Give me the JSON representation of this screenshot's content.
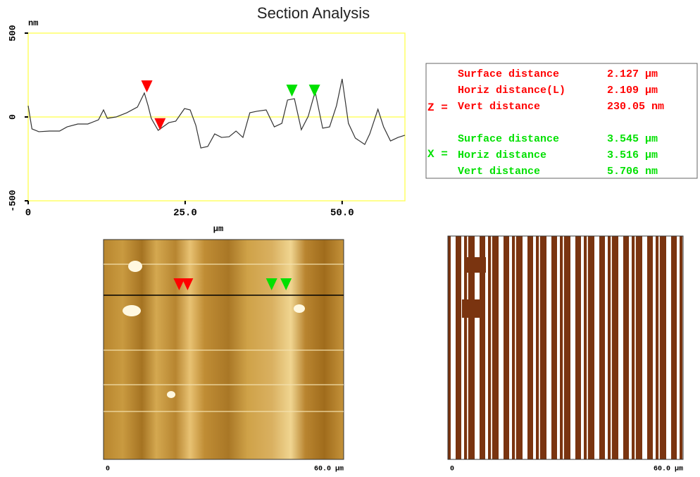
{
  "title": "Section Analysis",
  "chart_data": {
    "type": "line",
    "y_label": "nm",
    "x_label": "µm",
    "xlim": [
      0,
      60
    ],
    "ylim": [
      -500,
      500
    ],
    "yticks": [
      -500,
      0,
      500
    ],
    "xticks": [
      0,
      {
        "value": 25,
        "label": "25.0"
      },
      {
        "value": 50,
        "label": "50.0"
      }
    ],
    "grid": false,
    "reference_line": {
      "value": 0,
      "color": "#ffff66"
    },
    "frame_color": "#ffff66",
    "series": [
      {
        "color": "#333333",
        "x": [
          0,
          0.6,
          1.7,
          3.4,
          5.0,
          6.2,
          7.9,
          9.5,
          11.2,
          12.0,
          12.6,
          14.0,
          15.7,
          17.4,
          18.5,
          19.1,
          19.6,
          20.7,
          22.4,
          23.5,
          24.9,
          25.8,
          26.7,
          27.5,
          28.6,
          29.7,
          30.8,
          32.0,
          33.1,
          34.2,
          35.3,
          36.4,
          37.9,
          39.2,
          40.4,
          41.3,
          42.4,
          43.5,
          44.6,
          45.7,
          46.9,
          48.0,
          49.1,
          50.0,
          51.0,
          52.1,
          53.6,
          54.4,
          55.7,
          56.6,
          57.7,
          58.9,
          60
        ],
        "values": [
          67,
          -71,
          -88,
          -84,
          -84,
          -59,
          -42,
          -42,
          -17,
          42,
          -8,
          0,
          25,
          59,
          143,
          67,
          -8,
          -80,
          -34,
          -25,
          50,
          42,
          -50,
          -185,
          -176,
          -101,
          -122,
          -118,
          -84,
          -122,
          25,
          34,
          42,
          -59,
          -38,
          101,
          109,
          -76,
          4,
          151,
          -67,
          -59,
          67,
          227,
          -38,
          -126,
          -164,
          -101,
          46,
          -59,
          -143,
          -122,
          -109
        ]
      }
    ],
    "cursors": [
      {
        "color": "#ff0000",
        "x": 18.9,
        "y": 180
      },
      {
        "color": "#ff0000",
        "x": 21.0,
        "y": -45
      },
      {
        "color": "#00e000",
        "x": 42.0,
        "y": 155
      },
      {
        "color": "#00e000",
        "x": 45.6,
        "y": 155
      }
    ]
  },
  "measurements": [
    {
      "label": "Z =",
      "color": "#ff0000",
      "rows": [
        [
          "Surface distance",
          "2.127 µm"
        ],
        [
          "Horiz distance(L)",
          "2.109 µm"
        ],
        [
          "Vert distance",
          "230.05 nm"
        ]
      ]
    },
    {
      "label": "X =",
      "color": "#00e000",
      "rows": [
        [
          "Surface distance",
          "3.545 µm"
        ],
        [
          "Horiz distance",
          "3.516 µm"
        ],
        [
          "Vert distance",
          "5.706 nm"
        ]
      ]
    }
  ],
  "images": [
    {
      "x_start": "0",
      "x_end": "60.0 µm"
    },
    {
      "x_start": "0",
      "x_end": "60.0 µm"
    }
  ]
}
